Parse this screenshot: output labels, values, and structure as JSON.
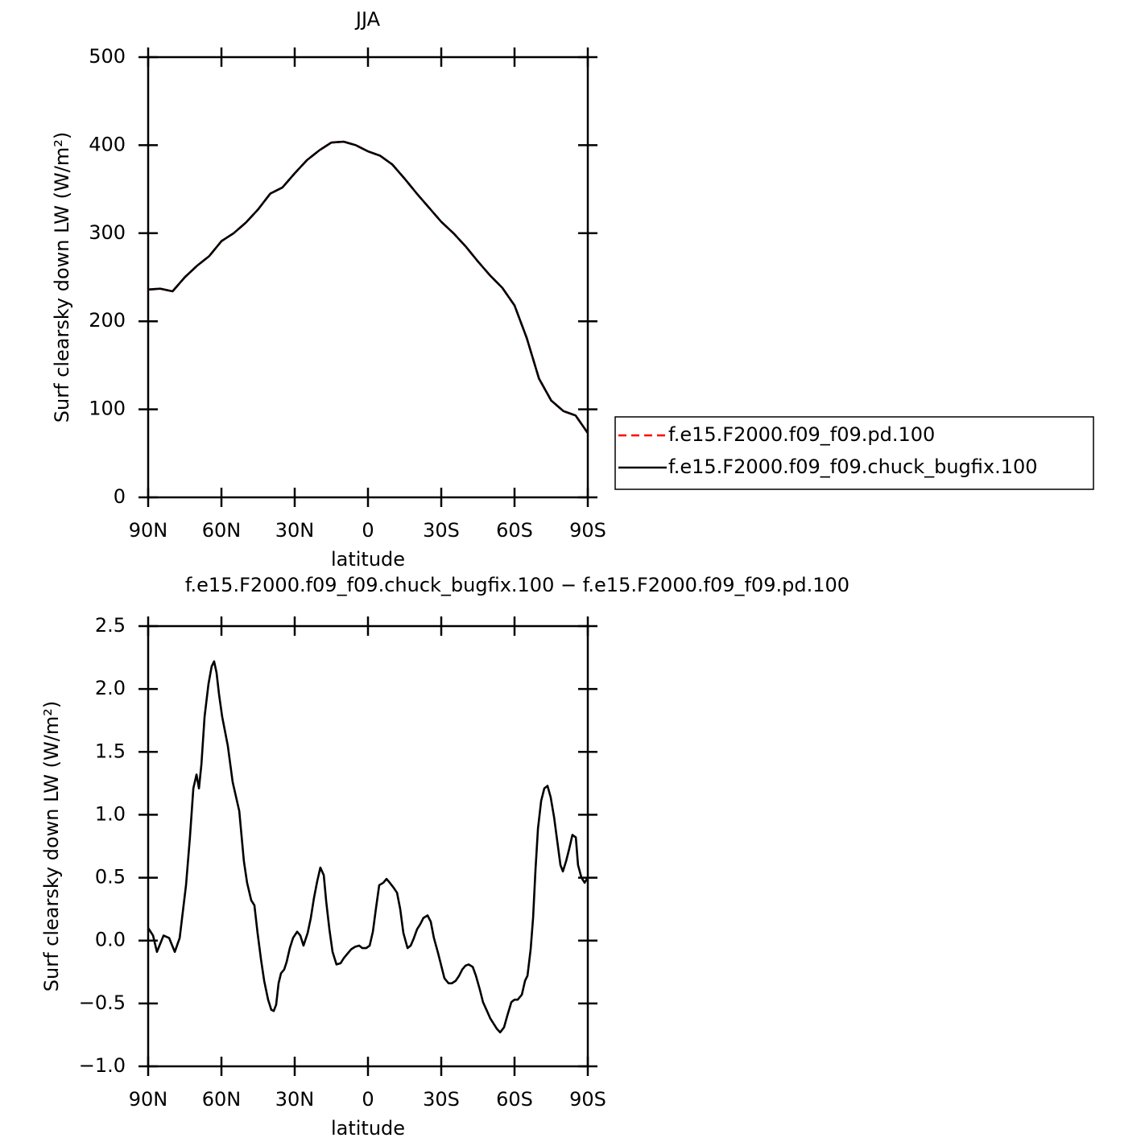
{
  "chart_data": [
    {
      "type": "line",
      "title": "JJA",
      "x_label": "latitude",
      "y_label": "Surf clearsky down LW (W/m²)",
      "x": [
        90,
        85,
        80,
        75,
        70,
        65,
        60,
        55,
        50,
        45,
        40,
        35,
        30,
        25,
        20,
        15,
        10,
        5,
        0,
        -5,
        -10,
        -15,
        -20,
        -25,
        -30,
        -35,
        -40,
        -45,
        -50,
        -55,
        -60,
        -65,
        -70,
        -75,
        -80,
        -85,
        -90
      ],
      "series": [
        {
          "name": "f.e15.F2000.f09_f09.pd.100",
          "color": "#ff0000",
          "dash": true,
          "values": [
            236,
            237,
            234,
            250,
            263,
            274,
            291,
            300,
            312,
            327,
            345,
            352,
            368,
            383,
            394,
            403,
            404,
            400,
            393,
            388,
            378,
            362,
            345,
            329,
            313,
            300,
            285,
            268,
            252,
            238,
            218,
            181,
            135,
            110,
            98,
            93,
            73
          ]
        },
        {
          "name": "f.e15.F2000.f09_f09.chuck_bugfix.100",
          "color": "#000000",
          "dash": false,
          "values": [
            236,
            237,
            234,
            250,
            263,
            274,
            291,
            300,
            312,
            327,
            345,
            352,
            368,
            383,
            394,
            403,
            404,
            400,
            393,
            388,
            378,
            362,
            345,
            329,
            313,
            300,
            285,
            268,
            252,
            238,
            218,
            181,
            135,
            110,
            98,
            93,
            73
          ]
        }
      ],
      "xlim": [
        90,
        -90
      ],
      "xticks": [
        {
          "value": 90,
          "label": "90N"
        },
        {
          "value": 60,
          "label": "60N"
        },
        {
          "value": 30,
          "label": "30N"
        },
        0,
        {
          "value": -30,
          "label": "30S"
        },
        {
          "value": -60,
          "label": "60S"
        },
        {
          "value": -90,
          "label": "90S"
        }
      ],
      "ylim": [
        0,
        500
      ],
      "yticks": [
        0,
        100,
        200,
        300,
        400,
        500
      ],
      "legend": "outside-right"
    },
    {
      "type": "line",
      "title": "f.e15.F2000.f09_f09.chuck_bugfix.100 − f.e15.F2000.f09_f09.pd.100",
      "x_label": "latitude",
      "y_label": "Surf clearsky down LW (W/m²)",
      "color": "#000000",
      "x": [
        90,
        88.0,
        86.4,
        83.7,
        81.4,
        79.1,
        77.1,
        74.5,
        72.9,
        71.5,
        70.2,
        69.2,
        68.2,
        66.9,
        65.3,
        64.0,
        63.0,
        62.0,
        61.0,
        59.7,
        57.4,
        55.4,
        52.7,
        50.8,
        49.5,
        47.8,
        46.5,
        45.2,
        43.8,
        42.5,
        40.9,
        39.6,
        38.6,
        37.6,
        36.6,
        35.6,
        34.3,
        33.3,
        32.0,
        30.7,
        29.0,
        27.7,
        26.4,
        24.7,
        23.4,
        22.1,
        20.8,
        19.5,
        18.1,
        17.1,
        15.8,
        14.5,
        12.9,
        11.2,
        9.9,
        8.2,
        6.9,
        5.3,
        3.6,
        2.3,
        0.7,
        -0.7,
        -2.0,
        -3.3,
        -4.6,
        -6.3,
        -7.6,
        -8.9,
        -10.5,
        -11.9,
        -13.2,
        -14.5,
        -16.2,
        -17.5,
        -18.8,
        -20.1,
        -21.4,
        -22.7,
        -24.4,
        -25.7,
        -27.0,
        -28.7,
        -30.0,
        -31.3,
        -33.0,
        -34.3,
        -35.9,
        -37.3,
        -38.6,
        -39.9,
        -41.2,
        -42.9,
        -44.2,
        -45.8,
        -47.1,
        -48.5,
        -50.1,
        -51.4,
        -52.7,
        -54.1,
        -55.7,
        -57.0,
        -58.7,
        -60.0,
        -61.3,
        -63.0,
        -64.3,
        -65.3,
        -66.6,
        -67.6,
        -68.6,
        -69.6,
        -70.9,
        -72.2,
        -73.5,
        -74.8,
        -76.2,
        -77.5,
        -78.8,
        -79.8,
        -81.1,
        -82.4,
        -83.7,
        -85.1,
        -86.0,
        -87.4,
        -88.7,
        -90
      ],
      "values": [
        0.1,
        0.04,
        -0.09,
        0.04,
        0.02,
        -0.09,
        0.02,
        0.44,
        0.82,
        1.21,
        1.32,
        1.21,
        1.4,
        1.78,
        2.04,
        2.18,
        2.22,
        2.13,
        1.96,
        1.78,
        1.55,
        1.26,
        1.03,
        0.63,
        0.46,
        0.32,
        0.28,
        0.06,
        -0.15,
        -0.32,
        -0.47,
        -0.55,
        -0.56,
        -0.51,
        -0.34,
        -0.26,
        -0.23,
        -0.17,
        -0.06,
        0.02,
        0.07,
        0.04,
        -0.04,
        0.06,
        0.18,
        0.34,
        0.47,
        0.58,
        0.52,
        0.31,
        0.09,
        -0.09,
        -0.19,
        -0.18,
        -0.14,
        -0.1,
        -0.07,
        -0.05,
        -0.04,
        -0.06,
        -0.06,
        -0.04,
        0.07,
        0.26,
        0.44,
        0.46,
        0.49,
        0.46,
        0.42,
        0.38,
        0.25,
        0.06,
        -0.06,
        -0.04,
        0.02,
        0.09,
        0.13,
        0.18,
        0.2,
        0.15,
        0.02,
        -0.1,
        -0.2,
        -0.3,
        -0.34,
        -0.34,
        -0.32,
        -0.28,
        -0.23,
        -0.2,
        -0.19,
        -0.21,
        -0.28,
        -0.39,
        -0.49,
        -0.55,
        -0.62,
        -0.66,
        -0.7,
        -0.73,
        -0.69,
        -0.6,
        -0.49,
        -0.47,
        -0.47,
        -0.43,
        -0.32,
        -0.28,
        -0.07,
        0.18,
        0.57,
        0.89,
        1.11,
        1.21,
        1.23,
        1.14,
        0.98,
        0.79,
        0.6,
        0.55,
        0.63,
        0.73,
        0.84,
        0.82,
        0.6,
        0.5,
        0.46,
        0.5
      ],
      "xlim": [
        90,
        -90
      ],
      "xticks": [
        {
          "value": 90,
          "label": "90N"
        },
        {
          "value": 60,
          "label": "60N"
        },
        {
          "value": 30,
          "label": "30N"
        },
        0,
        {
          "value": -30,
          "label": "30S"
        },
        {
          "value": -60,
          "label": "60S"
        },
        {
          "value": -90,
          "label": "90S"
        }
      ],
      "ylim": [
        -1.0,
        2.5
      ],
      "yticks": [
        {
          "value": -1.0,
          "label": "−1.0"
        },
        {
          "value": -0.5,
          "label": "−0.5"
        },
        {
          "value": 0,
          "label": "0.0"
        },
        {
          "value": 0.5,
          "label": "0.5"
        },
        {
          "value": 1.0,
          "label": "1.0"
        },
        {
          "value": 1.5,
          "label": "1.5"
        },
        {
          "value": 2.0,
          "label": "2.0"
        },
        {
          "value": 2.5,
          "label": "2.5"
        }
      ]
    }
  ]
}
